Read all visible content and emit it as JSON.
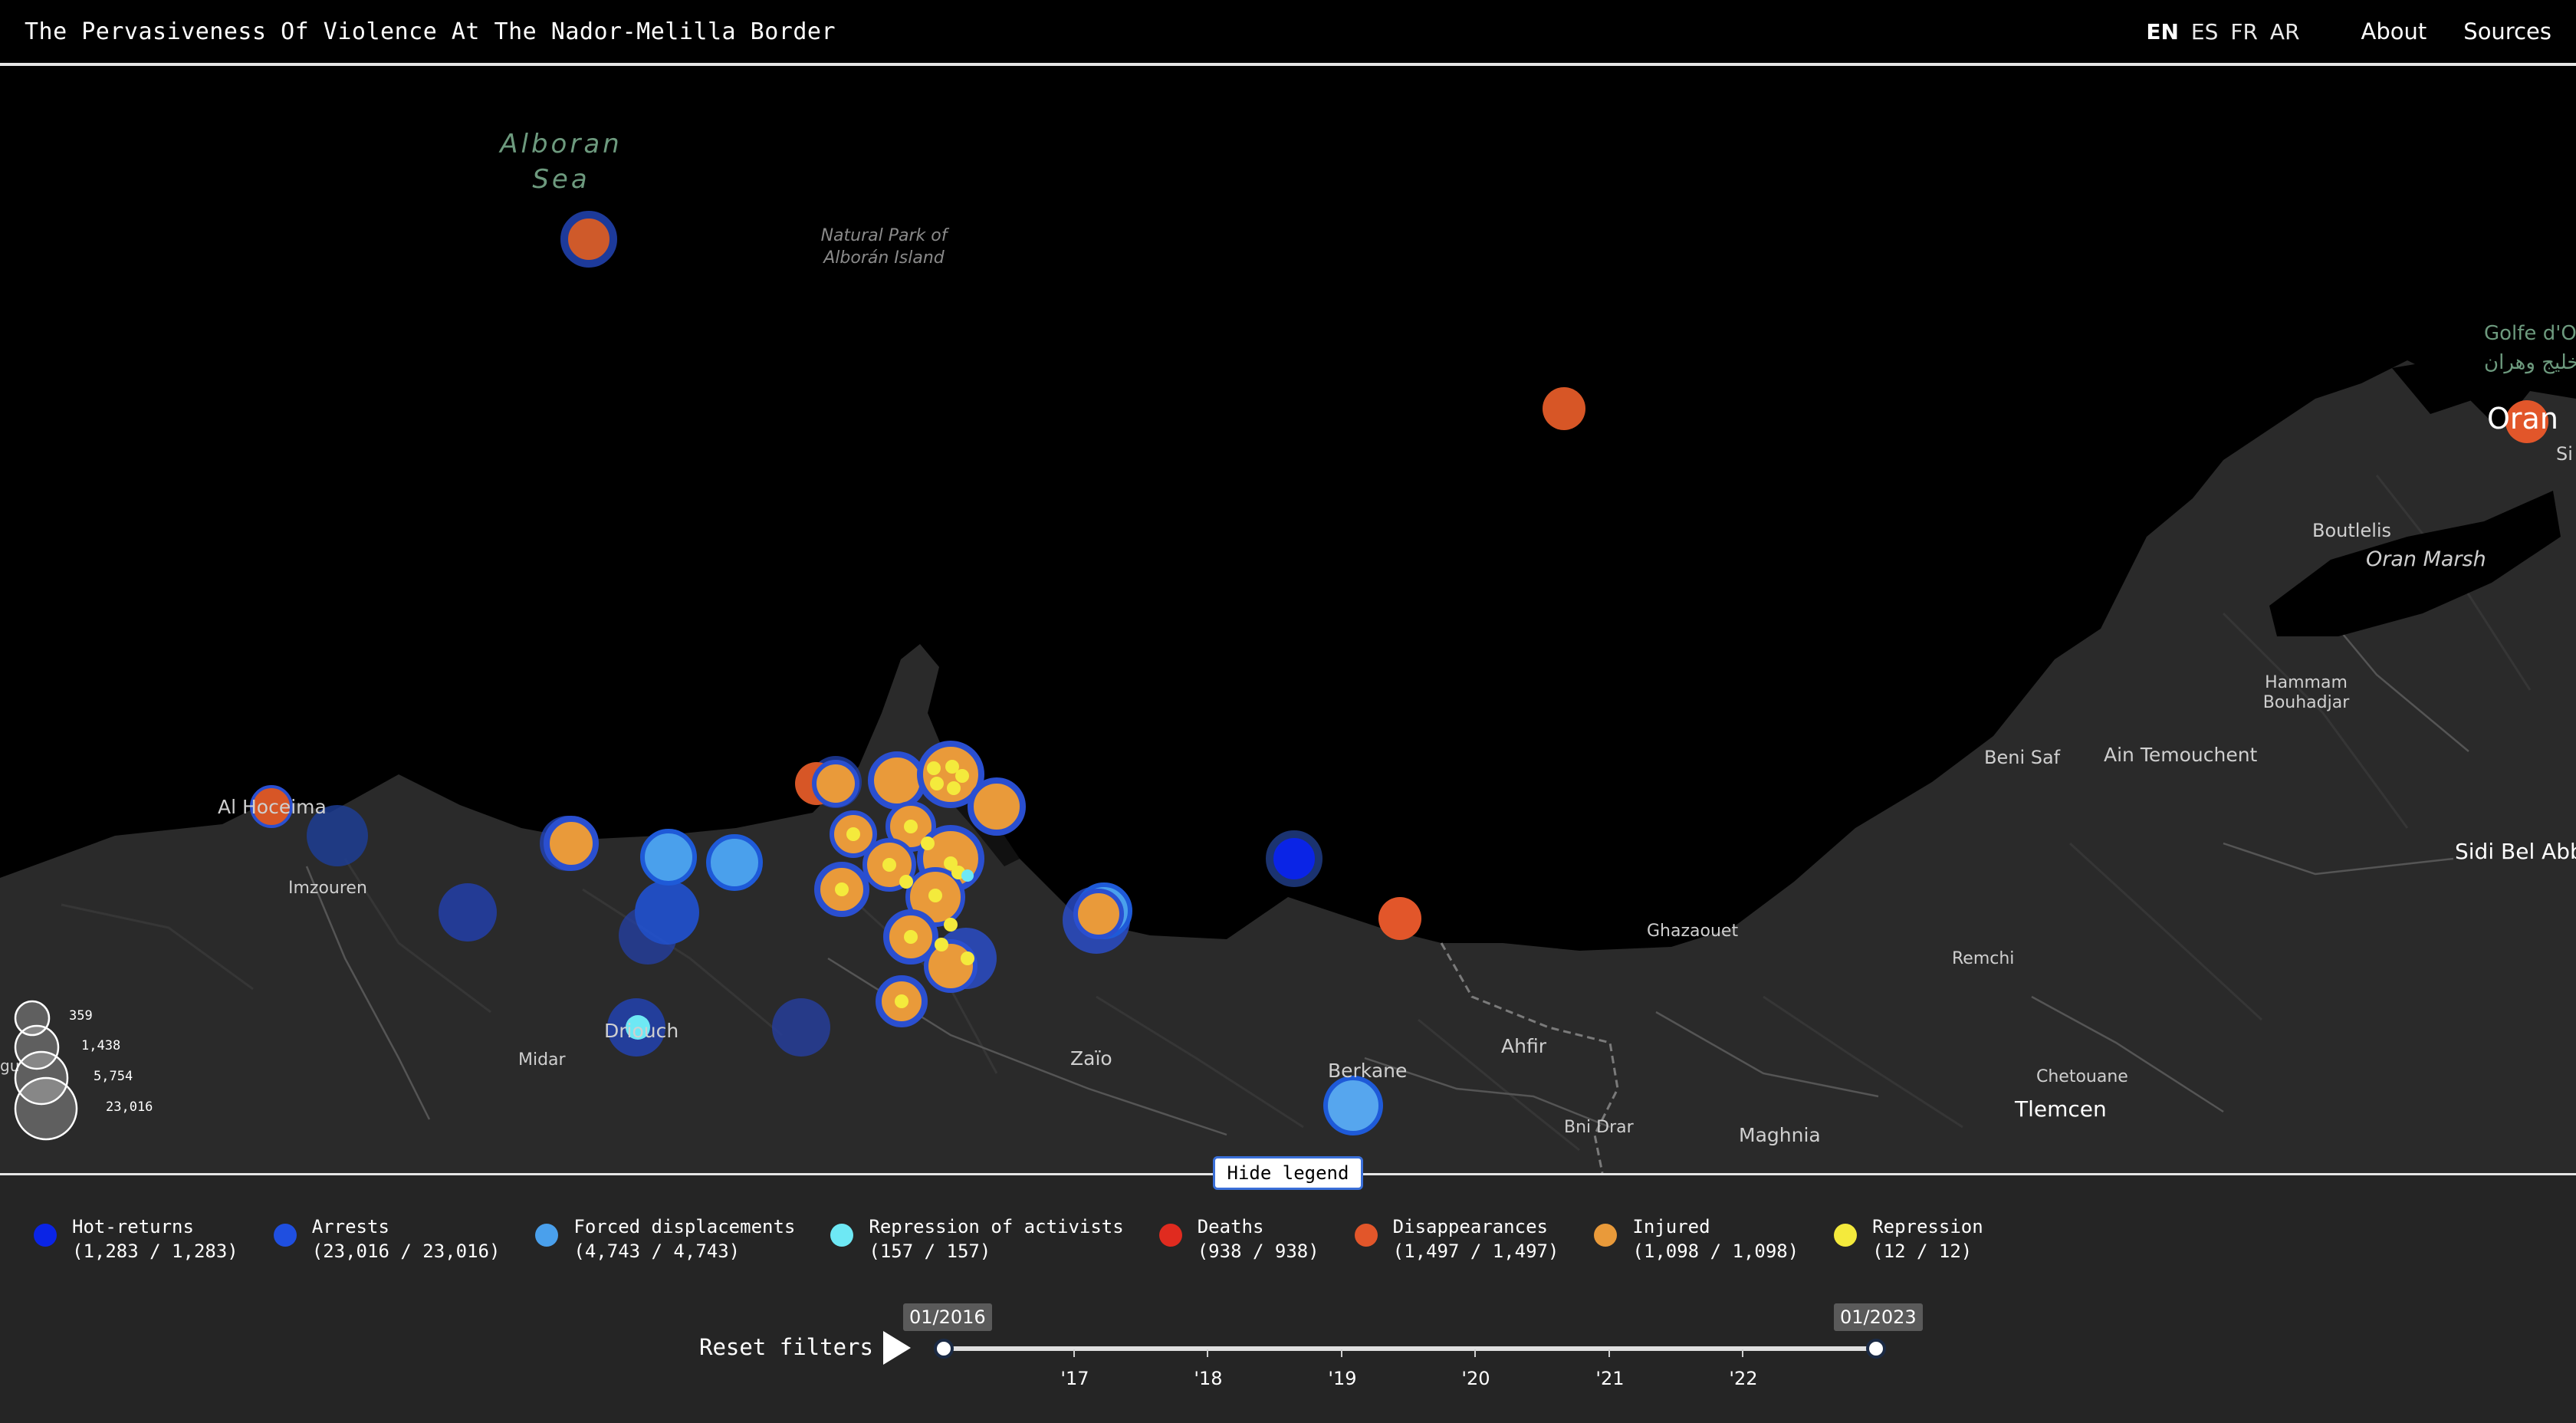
{
  "header": {
    "title": "The Pervasiveness Of Violence At The Nador-Melilla Border",
    "languages": [
      "EN",
      "ES",
      "FR",
      "AR"
    ],
    "active_language": "EN",
    "nav": {
      "about": "About",
      "sources": "Sources"
    }
  },
  "map": {
    "labels": {
      "alboran_sea": "Alboran Sea",
      "natural_park": "Natural Park of Alborán Island",
      "gulf": "Golfe d'Oran",
      "gulf_ar": "خليج وهران",
      "oran": "Oran",
      "si": "Si",
      "boutlelis": "Boutlelis",
      "oran_marsh": "Oran Marsh",
      "hammam": "Hammam Bouhadjar",
      "beni_saf": "Beni Saf",
      "ain_temouchent": "Ain Temouchent",
      "sidi_bel_abbes": "Sidi Bel Abb",
      "ghazaouet": "Ghazaouet",
      "remchi": "Remchi",
      "al_hoceima": "Al Hoceima",
      "imzouren": "Imzouren",
      "driouch": "Driouch",
      "midar": "Midar",
      "zaio": "Zaïo",
      "berkane": "Berkane",
      "ahfir": "Ahfir",
      "bni_drar": "Bni Drar",
      "maghnia": "Maghnia",
      "chetouane": "Chetouane",
      "tlemcen": "Tlemcen",
      "gu": "gu"
    },
    "size_legend": [
      "359",
      "1,438",
      "5,754",
      "23,016"
    ]
  },
  "legend": {
    "toggle_label": "Hide legend",
    "categories": [
      {
        "name": "Hot-returns",
        "count": "(1,283 / 1,283)",
        "color": "#0a24e6"
      },
      {
        "name": "Arrests",
        "count": "(23,016 / 23,016)",
        "color": "#1f4fe0"
      },
      {
        "name": "Forced displacements",
        "count": "(4,743 / 4,743)",
        "color": "#4aa0ec"
      },
      {
        "name": "Repression of activists",
        "count": "(157 / 157)",
        "color": "#6ee8f4"
      },
      {
        "name": "Deaths",
        "count": "(938 / 938)",
        "color": "#e02b1f"
      },
      {
        "name": "Disappearances",
        "count": "(1,497 / 1,497)",
        "color": "#e2562a"
      },
      {
        "name": "Injured",
        "count": "(1,098 / 1,098)",
        "color": "#e99a3a"
      },
      {
        "name": "Repression",
        "count": "(12 / 12)",
        "color": "#f4ea3c"
      }
    ]
  },
  "timeline": {
    "reset_label": "Reset filters",
    "start_label": "01/2016",
    "end_label": "01/2023",
    "ticks": [
      "'17",
      "'18",
      "'19",
      "'20",
      "'21",
      "'22"
    ]
  }
}
